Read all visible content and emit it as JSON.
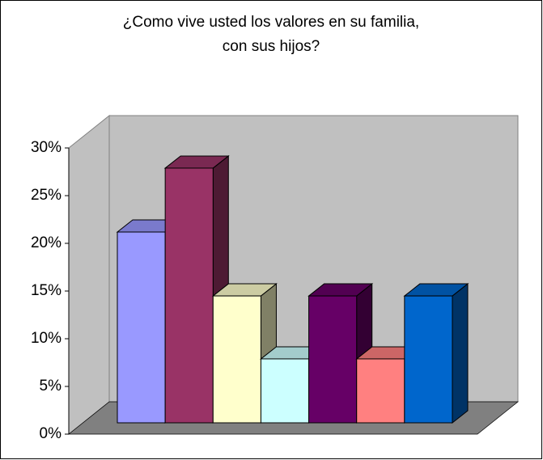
{
  "chart_data": {
    "type": "bar3d",
    "title": [
      "¿Como vive usted los valores en su familia,",
      "con sus hijos?"
    ],
    "categories": [
      null,
      null,
      null,
      null,
      null,
      null,
      null
    ],
    "values": [
      20,
      26.7,
      13.3,
      6.7,
      13.3,
      6.7,
      13.3
    ],
    "colors": [
      "#9999ff",
      "#993366",
      "#ffffcc",
      "#ccffff",
      "#660066",
      "#ff8080",
      "#0066cc"
    ],
    "ylim": [
      0,
      30
    ],
    "yticks": [
      {
        "value": 0,
        "label": "0%"
      },
      {
        "value": 5,
        "label": "5%"
      },
      {
        "value": 10,
        "label": "10%"
      },
      {
        "value": 15,
        "label": "15%"
      },
      {
        "value": 20,
        "label": "20%"
      },
      {
        "value": 25,
        "label": "25%"
      },
      {
        "value": 30,
        "label": "30%"
      }
    ],
    "grid": false
  }
}
